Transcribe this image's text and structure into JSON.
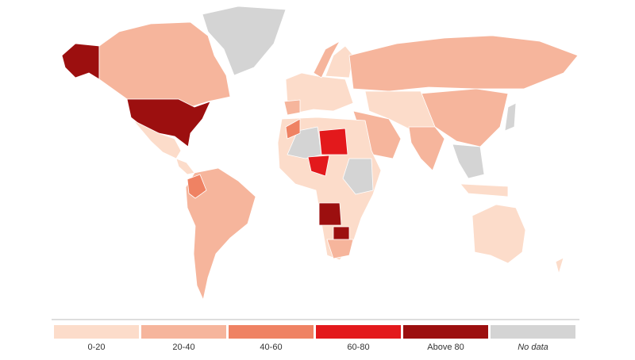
{
  "legend": {
    "bins": [
      {
        "label": "0-20",
        "color": "#fcdcca"
      },
      {
        "label": "20-40",
        "color": "#f6b59c"
      },
      {
        "label": "40-60",
        "color": "#ef8263"
      },
      {
        "label": "60-80",
        "color": "#e3191c"
      },
      {
        "label": "Above 80",
        "color": "#9c0f0f"
      },
      {
        "label": "No data",
        "color": "#d4d4d4"
      }
    ]
  }
}
